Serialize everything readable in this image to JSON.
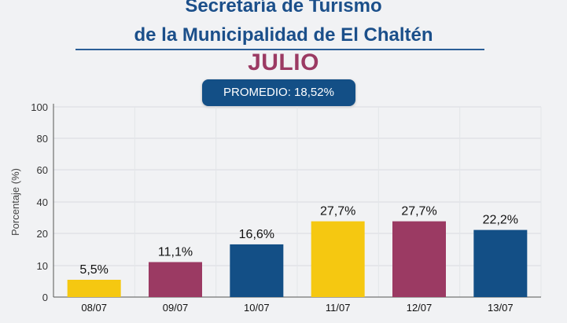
{
  "header": {
    "title_line1": "Secretaría de Turismo",
    "title_line2": "de la Municipalidad de El Chaltén",
    "month": "JULIO",
    "average_label": "PROMEDIO: 18,52%"
  },
  "colors": {
    "title": "#1b4f8a",
    "month": "#9b3a63",
    "badge": "#134f86",
    "yellow": "#f5c811",
    "maroon": "#9b3a63",
    "blue": "#134f86"
  },
  "chart_data": {
    "type": "bar",
    "categories": [
      "08/07",
      "09/07",
      "10/07",
      "11/07",
      "12/07",
      "13/07"
    ],
    "values": [
      5.5,
      11.1,
      16.6,
      27.7,
      27.7,
      22.2
    ],
    "value_labels": [
      "5,5%",
      "11,1%",
      "16,6%",
      "27,7%",
      "27,7%",
      "22,2%"
    ],
    "bar_colors": [
      "#f5c811",
      "#9b3a63",
      "#134f86",
      "#f5c811",
      "#9b3a63",
      "#134f86"
    ],
    "ylabel": "Porcentaje (%)",
    "ylim": [
      0,
      100
    ],
    "yticks": [
      0,
      10,
      20,
      40,
      60,
      80,
      100
    ],
    "grid": true
  }
}
